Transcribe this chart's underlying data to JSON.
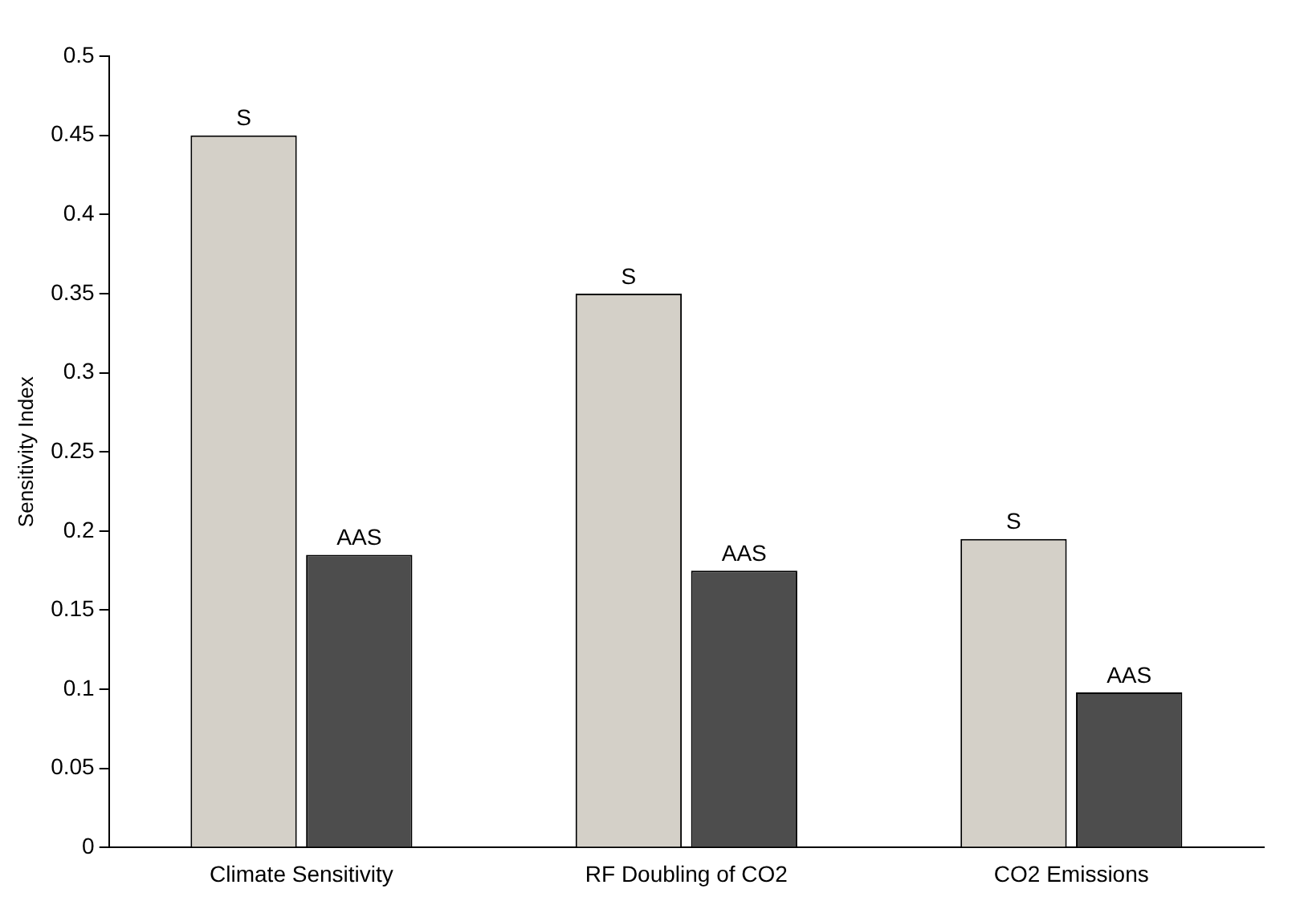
{
  "chart_data": {
    "type": "bar",
    "ylabel": "Sensitivity Index",
    "categories": [
      "Climate Sensitivity",
      "RF Doubling of CO2",
      "CO2 Emissions"
    ],
    "series": [
      {
        "name": "S",
        "color": "#d4d0c8",
        "values": [
          0.45,
          0.35,
          0.195
        ]
      },
      {
        "name": "AAS",
        "color": "#4d4d4d",
        "values": [
          0.185,
          0.175,
          0.098
        ]
      }
    ],
    "ylim": [
      0,
      0.5
    ],
    "yticks": [
      0,
      0.05,
      0.1,
      0.15,
      0.2,
      0.25,
      0.3,
      0.35,
      0.4,
      0.45,
      0.5
    ],
    "grid": false,
    "legend": false
  }
}
